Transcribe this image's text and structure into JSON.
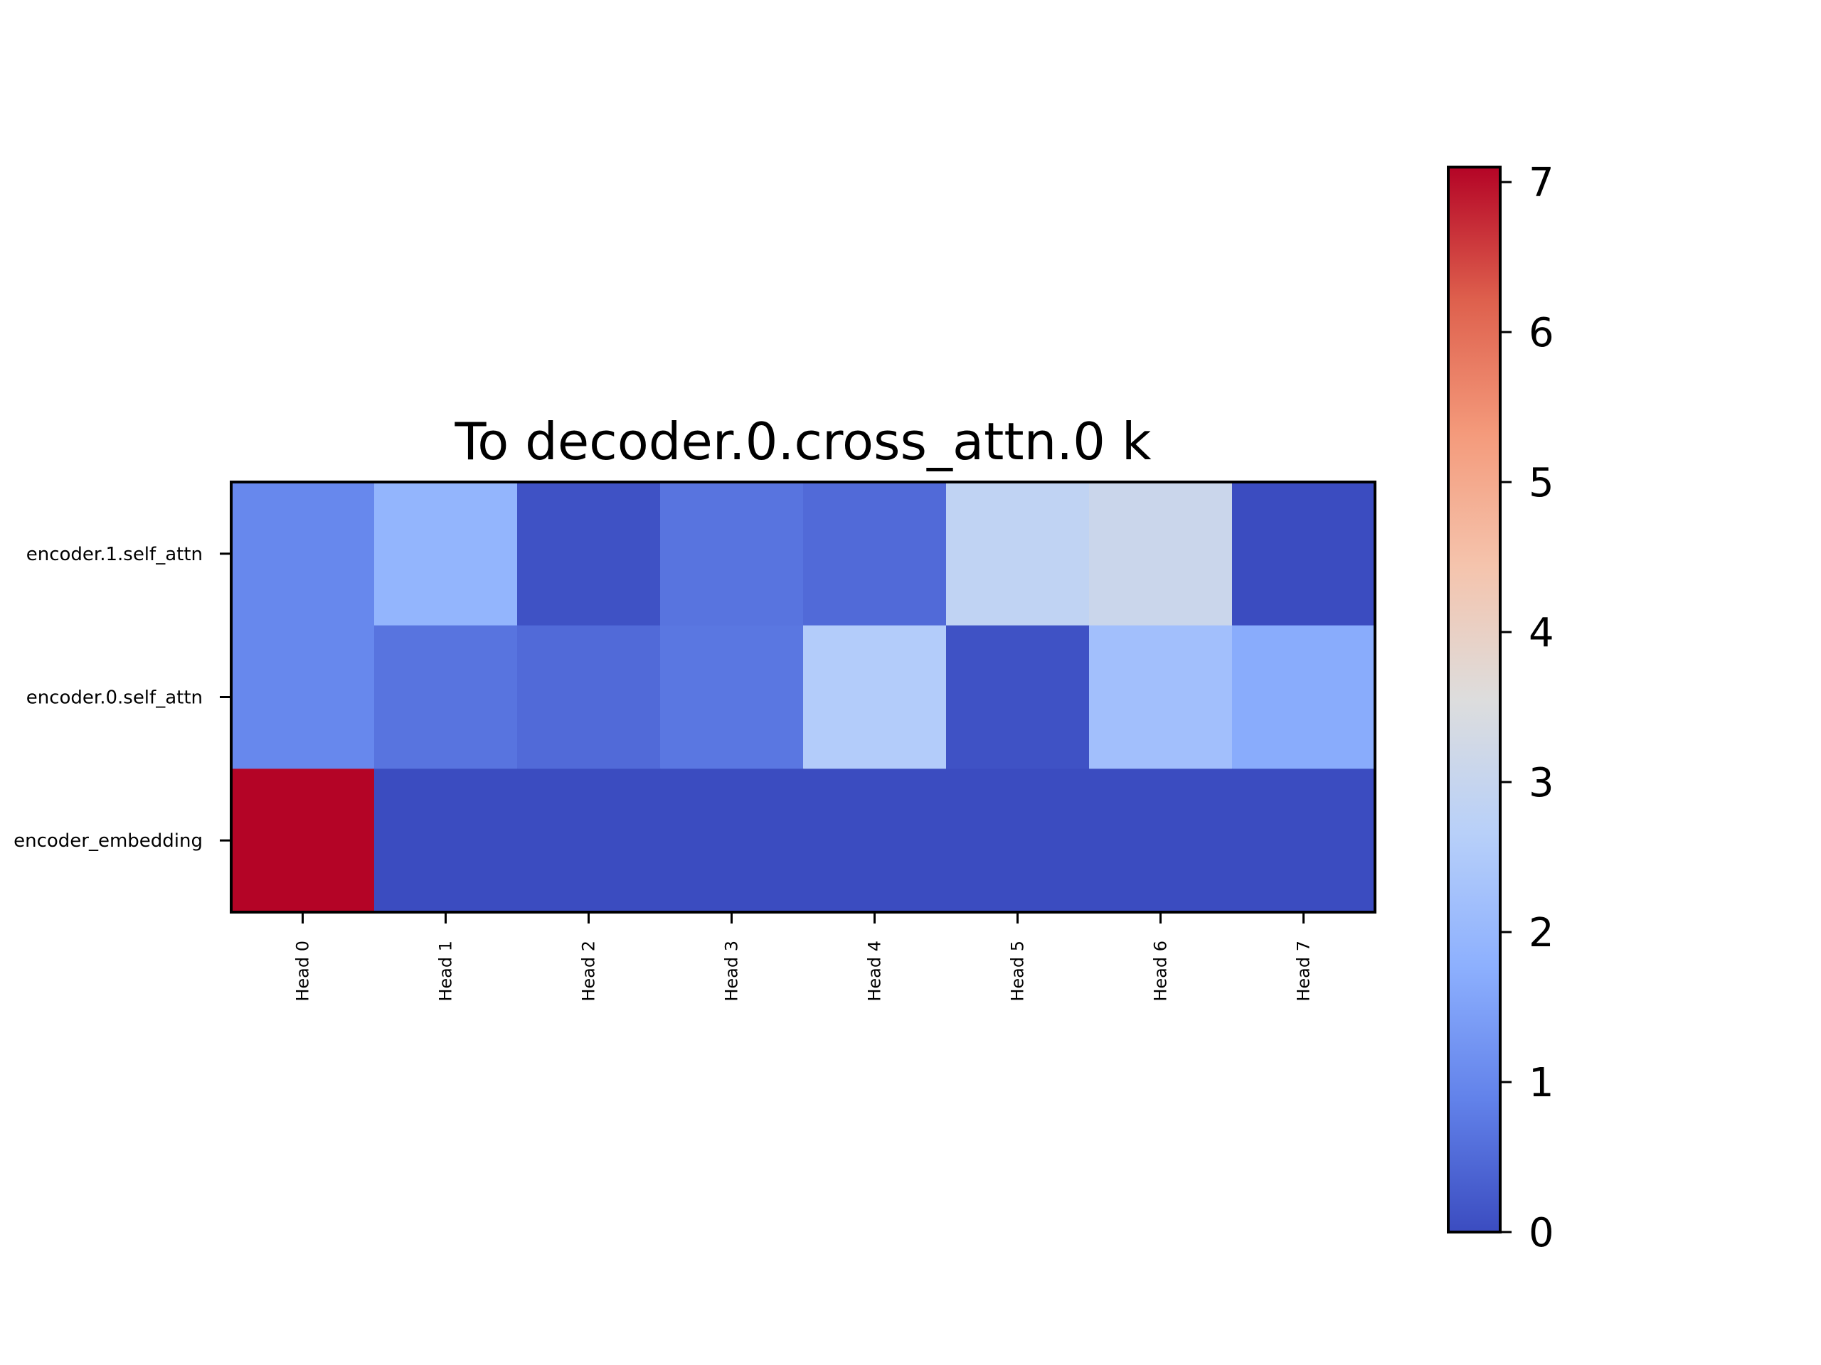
{
  "chart_data": {
    "type": "heatmap",
    "title": "To decoder.0.cross_attn.0 k",
    "xlabel": "",
    "ylabel": "",
    "x_categories": [
      "Head 0",
      "Head 1",
      "Head 2",
      "Head 3",
      "Head 4",
      "Head 5",
      "Head 6",
      "Head 7"
    ],
    "y_categories": [
      "encoder.1.self_attn",
      "encoder.0.self_attn",
      "encoder_embedding"
    ],
    "values": [
      [
        1.0,
        1.9,
        0.1,
        0.65,
        0.5,
        2.85,
        3.1,
        0.0
      ],
      [
        1.0,
        0.65,
        0.5,
        0.7,
        2.55,
        0.1,
        2.2,
        1.7
      ],
      [
        7.1,
        0.0,
        0.0,
        0.0,
        0.0,
        0.0,
        0.0,
        0.0
      ]
    ],
    "colormap": "coolwarm",
    "vmin": 0,
    "vmax": 7.1,
    "colorbar_ticks": [
      0,
      1,
      2,
      3,
      4,
      5,
      6,
      7
    ],
    "grid": false,
    "colorbar_position": "right"
  }
}
